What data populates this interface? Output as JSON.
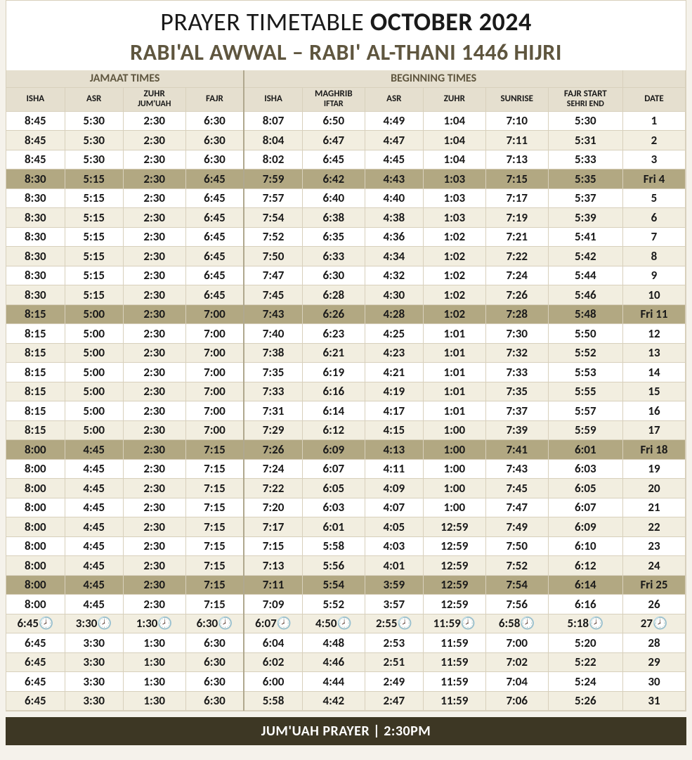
{
  "title": {
    "prefix": "PRAYER TIMETABLE ",
    "bold": "OCTOBER 2024"
  },
  "subtitle": "RABI'AL AWWAL – RABI' AL-THANI 1446 HIJRI",
  "groups": {
    "jamaat": "JAMAAT TIMES",
    "beginning": "BEGINNING  TIMES"
  },
  "columns": [
    {
      "key": "j_isha",
      "label": "ISHA"
    },
    {
      "key": "j_asr",
      "label": "ASR"
    },
    {
      "key": "j_zuhr",
      "label": "ZUHR",
      "sub": "JUM'UAH"
    },
    {
      "key": "j_fajr",
      "label": "FAJR"
    },
    {
      "key": "b_isha",
      "label": "ISHA"
    },
    {
      "key": "b_maghrib",
      "label": "MAGHRIB",
      "sub": "IFTAR"
    },
    {
      "key": "b_asr",
      "label": "ASR"
    },
    {
      "key": "b_zuhr",
      "label": "ZUHR"
    },
    {
      "key": "b_sunrise",
      "label": "SUNRISE"
    },
    {
      "key": "b_fajr",
      "label": "FAJR START",
      "sub": "SEHRI END"
    },
    {
      "key": "date",
      "label": "DATE"
    }
  ],
  "rows": [
    {
      "friday": false,
      "clock": false,
      "cells": [
        "8:45",
        "5:30",
        "2:30",
        "6:30",
        "8:07",
        "6:50",
        "4:49",
        "1:04",
        "7:10",
        "5:30",
        "1"
      ]
    },
    {
      "friday": false,
      "clock": false,
      "cells": [
        "8:45",
        "5:30",
        "2:30",
        "6:30",
        "8:04",
        "6:47",
        "4:47",
        "1:04",
        "7:11",
        "5:31",
        "2"
      ]
    },
    {
      "friday": false,
      "clock": false,
      "cells": [
        "8:45",
        "5:30",
        "2:30",
        "6:30",
        "8:02",
        "6:45",
        "4:45",
        "1:04",
        "7:13",
        "5:33",
        "3"
      ]
    },
    {
      "friday": true,
      "clock": false,
      "cells": [
        "8:30",
        "5:15",
        "2:30",
        "6:45",
        "7:59",
        "6:42",
        "4:43",
        "1:03",
        "7:15",
        "5:35",
        "Fri 4"
      ]
    },
    {
      "friday": false,
      "clock": false,
      "cells": [
        "8:30",
        "5:15",
        "2:30",
        "6:45",
        "7:57",
        "6:40",
        "4:40",
        "1:03",
        "7:17",
        "5:37",
        "5"
      ]
    },
    {
      "friday": false,
      "clock": false,
      "cells": [
        "8:30",
        "5:15",
        "2:30",
        "6:45",
        "7:54",
        "6:38",
        "4:38",
        "1:03",
        "7:19",
        "5:39",
        "6"
      ]
    },
    {
      "friday": false,
      "clock": false,
      "cells": [
        "8:30",
        "5:15",
        "2:30",
        "6:45",
        "7:52",
        "6:35",
        "4:36",
        "1:02",
        "7:21",
        "5:41",
        "7"
      ]
    },
    {
      "friday": false,
      "clock": false,
      "cells": [
        "8:30",
        "5:15",
        "2:30",
        "6:45",
        "7:50",
        "6:33",
        "4:34",
        "1:02",
        "7:22",
        "5:42",
        "8"
      ]
    },
    {
      "friday": false,
      "clock": false,
      "cells": [
        "8:30",
        "5:15",
        "2:30",
        "6:45",
        "7:47",
        "6:30",
        "4:32",
        "1:02",
        "7:24",
        "5:44",
        "9"
      ]
    },
    {
      "friday": false,
      "clock": false,
      "cells": [
        "8:30",
        "5:15",
        "2:30",
        "6:45",
        "7:45",
        "6:28",
        "4:30",
        "1:02",
        "7:26",
        "5:46",
        "10"
      ]
    },
    {
      "friday": true,
      "clock": false,
      "cells": [
        "8:15",
        "5:00",
        "2:30",
        "7:00",
        "7:43",
        "6:26",
        "4:28",
        "1:02",
        "7:28",
        "5:48",
        "Fri 11"
      ]
    },
    {
      "friday": false,
      "clock": false,
      "cells": [
        "8:15",
        "5:00",
        "2:30",
        "7:00",
        "7:40",
        "6:23",
        "4:25",
        "1:01",
        "7:30",
        "5:50",
        "12"
      ]
    },
    {
      "friday": false,
      "clock": false,
      "cells": [
        "8:15",
        "5:00",
        "2:30",
        "7:00",
        "7:38",
        "6:21",
        "4:23",
        "1:01",
        "7:32",
        "5:52",
        "13"
      ]
    },
    {
      "friday": false,
      "clock": false,
      "cells": [
        "8:15",
        "5:00",
        "2:30",
        "7:00",
        "7:35",
        "6:19",
        "4:21",
        "1:01",
        "7:33",
        "5:53",
        "14"
      ]
    },
    {
      "friday": false,
      "clock": false,
      "cells": [
        "8:15",
        "5:00",
        "2:30",
        "7:00",
        "7:33",
        "6:16",
        "4:19",
        "1:01",
        "7:35",
        "5:55",
        "15"
      ]
    },
    {
      "friday": false,
      "clock": false,
      "cells": [
        "8:15",
        "5:00",
        "2:30",
        "7:00",
        "7:31",
        "6:14",
        "4:17",
        "1:01",
        "7:37",
        "5:57",
        "16"
      ]
    },
    {
      "friday": false,
      "clock": false,
      "cells": [
        "8:15",
        "5:00",
        "2:30",
        "7:00",
        "7:29",
        "6:12",
        "4:15",
        "1:00",
        "7:39",
        "5:59",
        "17"
      ]
    },
    {
      "friday": true,
      "clock": false,
      "cells": [
        "8:00",
        "4:45",
        "2:30",
        "7:15",
        "7:26",
        "6:09",
        "4:13",
        "1:00",
        "7:41",
        "6:01",
        "Fri 18"
      ]
    },
    {
      "friday": false,
      "clock": false,
      "cells": [
        "8:00",
        "4:45",
        "2:30",
        "7:15",
        "7:24",
        "6:07",
        "4:11",
        "1:00",
        "7:43",
        "6:03",
        "19"
      ]
    },
    {
      "friday": false,
      "clock": false,
      "cells": [
        "8:00",
        "4:45",
        "2:30",
        "7:15",
        "7:22",
        "6:05",
        "4:09",
        "1:00",
        "7:45",
        "6:05",
        "20"
      ]
    },
    {
      "friday": false,
      "clock": false,
      "cells": [
        "8:00",
        "4:45",
        "2:30",
        "7:15",
        "7:20",
        "6:03",
        "4:07",
        "1:00",
        "7:47",
        "6:07",
        "21"
      ]
    },
    {
      "friday": false,
      "clock": false,
      "cells": [
        "8:00",
        "4:45",
        "2:30",
        "7:15",
        "7:17",
        "6:01",
        "4:05",
        "12:59",
        "7:49",
        "6:09",
        "22"
      ]
    },
    {
      "friday": false,
      "clock": false,
      "cells": [
        "8:00",
        "4:45",
        "2:30",
        "7:15",
        "7:15",
        "5:58",
        "4:03",
        "12:59",
        "7:50",
        "6:10",
        "23"
      ]
    },
    {
      "friday": false,
      "clock": false,
      "cells": [
        "8:00",
        "4:45",
        "2:30",
        "7:15",
        "7:13",
        "5:56",
        "4:01",
        "12:59",
        "7:52",
        "6:12",
        "24"
      ]
    },
    {
      "friday": true,
      "clock": false,
      "cells": [
        "8:00",
        "4:45",
        "2:30",
        "7:15",
        "7:11",
        "5:54",
        "3:59",
        "12:59",
        "7:54",
        "6:14",
        "Fri 25"
      ]
    },
    {
      "friday": false,
      "clock": false,
      "cells": [
        "8:00",
        "4:45",
        "2:30",
        "7:15",
        "7:09",
        "5:52",
        "3:57",
        "12:59",
        "7:56",
        "6:16",
        "26"
      ]
    },
    {
      "friday": false,
      "clock": true,
      "cells": [
        "6:45",
        "3:30",
        "1:30",
        "6:30",
        "6:07",
        "4:50",
        "2:55",
        "11:59",
        "6:58",
        "5:18",
        "27"
      ]
    },
    {
      "friday": false,
      "clock": false,
      "cells": [
        "6:45",
        "3:30",
        "1:30",
        "6:30",
        "6:04",
        "4:48",
        "2:53",
        "11:59",
        "7:00",
        "5:20",
        "28"
      ]
    },
    {
      "friday": false,
      "clock": false,
      "cells": [
        "6:45",
        "3:30",
        "1:30",
        "6:30",
        "6:02",
        "4:46",
        "2:51",
        "11:59",
        "7:02",
        "5:22",
        "29"
      ]
    },
    {
      "friday": false,
      "clock": false,
      "cells": [
        "6:45",
        "3:30",
        "1:30",
        "6:30",
        "6:00",
        "4:44",
        "2:49",
        "11:59",
        "7:04",
        "5:24",
        "30"
      ]
    },
    {
      "friday": false,
      "clock": false,
      "cells": [
        "6:45",
        "3:30",
        "1:30",
        "6:30",
        "5:58",
        "4:42",
        "2:47",
        "11:59",
        "7:06",
        "5:26",
        "31"
      ]
    }
  ],
  "clock_glyph": "🕗",
  "footer": "JUM'UAH PRAYER | 2:30PM",
  "colors": {
    "header_bg": "#e5dfcf",
    "friday_bg": "#b2a882",
    "alt_bg": "#f2eee0",
    "border": "#d8d0bc",
    "subtitle": "#5f563f",
    "footer_bg": "#3d3724"
  }
}
